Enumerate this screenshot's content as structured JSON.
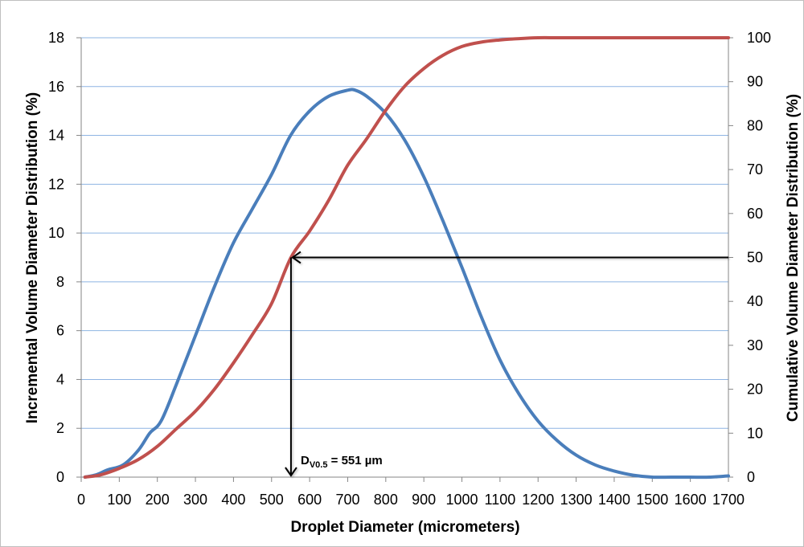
{
  "chart_data": {
    "type": "line",
    "xlabel": "Droplet Diameter (micrometers)",
    "ylabel_left": "Incremental Volume Diameter Distribution (%)",
    "ylabel_right": "Cumulative Volume Diameter Distribution (%)",
    "xlim": [
      0,
      1700
    ],
    "ylim_left": [
      0,
      18
    ],
    "ylim_right": [
      0,
      100
    ],
    "x_ticks": [
      0,
      100,
      200,
      300,
      400,
      500,
      600,
      700,
      800,
      900,
      1000,
      1100,
      1200,
      1300,
      1400,
      1500,
      1600,
      1700
    ],
    "y_left_ticks": [
      0,
      2,
      4,
      6,
      8,
      10,
      12,
      14,
      16,
      18
    ],
    "y_right_ticks": [
      0,
      10,
      20,
      30,
      40,
      50,
      60,
      70,
      80,
      90,
      100
    ],
    "grid": "horizontal",
    "series": [
      {
        "name": "Incremental",
        "axis": "left",
        "color": "#4a7ebb",
        "x": [
          10,
          40,
          70,
          110,
          150,
          180,
          210,
          250,
          300,
          350,
          400,
          450,
          500,
          550,
          600,
          650,
          700,
          720,
          750,
          800,
          850,
          900,
          950,
          1000,
          1050,
          1100,
          1150,
          1200,
          1250,
          1300,
          1350,
          1400,
          1450,
          1500,
          1550,
          1600,
          1650,
          1700
        ],
        "values": [
          0.0,
          0.1,
          0.3,
          0.5,
          1.1,
          1.8,
          2.3,
          3.8,
          5.8,
          7.8,
          9.6,
          11.0,
          12.4,
          14.0,
          15.0,
          15.6,
          15.85,
          15.85,
          15.6,
          14.9,
          13.8,
          12.3,
          10.5,
          8.6,
          6.6,
          4.8,
          3.4,
          2.3,
          1.5,
          0.9,
          0.5,
          0.25,
          0.08,
          0.0,
          0.0,
          0.0,
          0.0,
          0.05
        ]
      },
      {
        "name": "Cumulative",
        "axis": "right",
        "color": "#c0504d",
        "x": [
          10,
          50,
          100,
          150,
          200,
          250,
          300,
          350,
          400,
          450,
          500,
          551,
          600,
          650,
          700,
          750,
          800,
          850,
          900,
          950,
          1000,
          1050,
          1100,
          1150,
          1200,
          1250,
          1300,
          1400,
          1500,
          1600,
          1700
        ],
        "values": [
          0,
          0.5,
          2,
          4,
          7,
          11,
          15,
          20,
          26,
          32.5,
          39.5,
          50,
          56,
          63,
          71,
          77,
          83.5,
          89,
          93,
          96,
          98,
          99,
          99.5,
          99.8,
          100,
          100,
          100,
          100,
          100,
          100,
          100
        ]
      }
    ],
    "annotation": {
      "label_main": "D",
      "label_sub": "V0.5",
      "label_rest": " = 551 µm",
      "x": 551,
      "cumulative_percent": 50
    }
  }
}
